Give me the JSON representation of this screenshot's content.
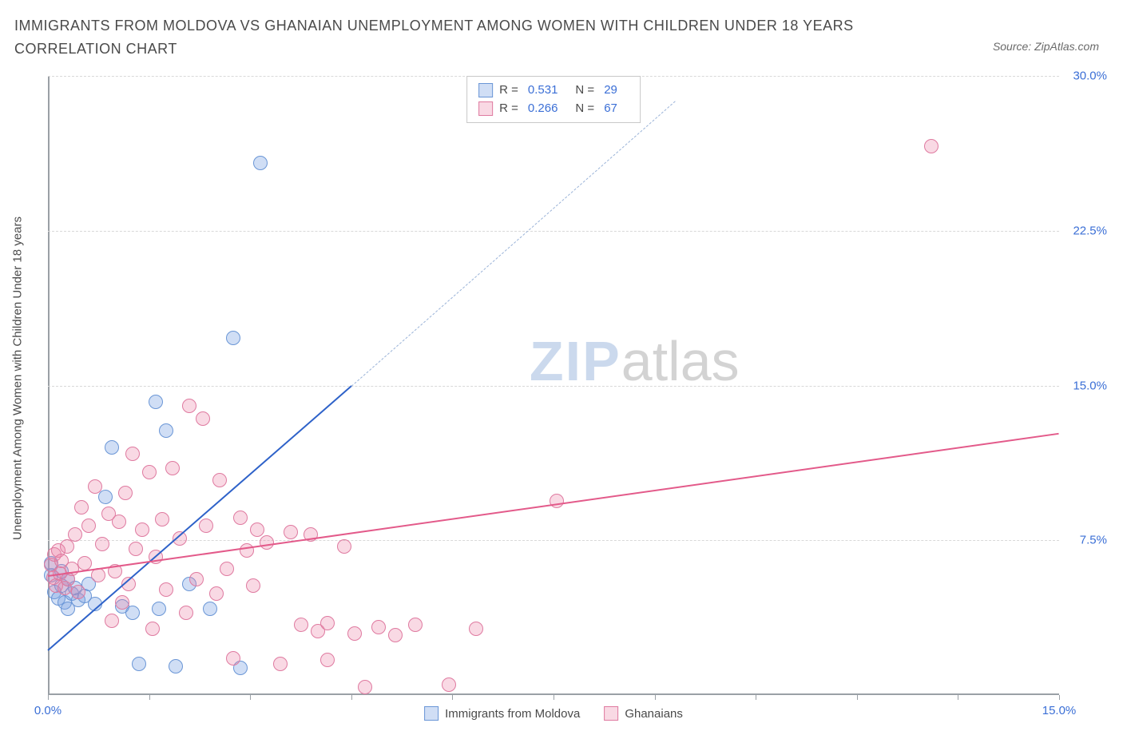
{
  "title": "IMMIGRANTS FROM MOLDOVA VS GHANAIAN UNEMPLOYMENT AMONG WOMEN WITH CHILDREN UNDER 18 YEARS CORRELATION CHART",
  "source_label": "Source: ZipAtlas.com",
  "y_axis_label": "Unemployment Among Women with Children Under 18 years",
  "watermark": {
    "part1": "ZIP",
    "part2": "atlas"
  },
  "chart": {
    "type": "scatter",
    "x_range": [
      0,
      15
    ],
    "y_range": [
      0,
      30
    ],
    "x_ticks": [
      0,
      1.5,
      3,
      4.5,
      6,
      7.5,
      9,
      10.5,
      12,
      13.5,
      15
    ],
    "x_tick_labels": {
      "0": "0.0%",
      "15": "15.0%"
    },
    "y_gridlines": [
      7.5,
      15.0,
      22.5,
      30.0
    ],
    "y_tick_labels": [
      "7.5%",
      "15.0%",
      "22.5%",
      "30.0%"
    ],
    "background_color": "#ffffff",
    "grid_color": "#d8d8d8",
    "axis_color": "#9aa0a6",
    "tick_label_color": "#3b6fd6",
    "marker_radius": 9,
    "series": [
      {
        "name": "Immigrants from Moldova",
        "fill": "rgba(120,160,225,0.35)",
        "stroke": "#6a96d6",
        "trend_color": "#2e62c9",
        "trend_dash_color": "#9ab3d8",
        "R": "0.531",
        "N": "29",
        "trend": {
          "x1": 0,
          "y1": 2.2,
          "x2": 4.5,
          "y2": 15.0,
          "extend_to_x": 9.3,
          "extend_to_y": 28.8
        },
        "points": [
          [
            0.05,
            5.8
          ],
          [
            0.05,
            6.4
          ],
          [
            0.1,
            5.0
          ],
          [
            0.15,
            4.7
          ],
          [
            0.2,
            6.0
          ],
          [
            0.2,
            5.3
          ],
          [
            0.25,
            4.5
          ],
          [
            0.3,
            4.2
          ],
          [
            0.3,
            5.6
          ],
          [
            0.35,
            4.9
          ],
          [
            0.4,
            5.2
          ],
          [
            0.45,
            4.6
          ],
          [
            0.55,
            4.8
          ],
          [
            0.6,
            5.4
          ],
          [
            0.7,
            4.4
          ],
          [
            0.85,
            9.6
          ],
          [
            0.95,
            12.0
          ],
          [
            1.1,
            4.3
          ],
          [
            1.25,
            4.0
          ],
          [
            1.35,
            1.5
          ],
          [
            1.6,
            14.2
          ],
          [
            1.65,
            4.2
          ],
          [
            1.75,
            12.8
          ],
          [
            1.9,
            1.4
          ],
          [
            2.1,
            5.4
          ],
          [
            2.4,
            4.2
          ],
          [
            2.75,
            17.3
          ],
          [
            2.85,
            1.3
          ],
          [
            3.15,
            25.8
          ]
        ]
      },
      {
        "name": "Ghanaians",
        "fill": "rgba(235,130,165,0.30)",
        "stroke": "#df7aa0",
        "trend_color": "#e35a8a",
        "R": "0.266",
        "N": "67",
        "trend": {
          "x1": 0,
          "y1": 5.8,
          "x2": 15,
          "y2": 12.7
        },
        "points": [
          [
            0.05,
            6.3
          ],
          [
            0.08,
            5.7
          ],
          [
            0.1,
            6.8
          ],
          [
            0.12,
            5.3
          ],
          [
            0.15,
            7.0
          ],
          [
            0.18,
            5.9
          ],
          [
            0.2,
            6.5
          ],
          [
            0.25,
            5.2
          ],
          [
            0.28,
            7.2
          ],
          [
            0.3,
            5.6
          ],
          [
            0.35,
            6.1
          ],
          [
            0.4,
            7.8
          ],
          [
            0.45,
            5.0
          ],
          [
            0.5,
            9.1
          ],
          [
            0.55,
            6.4
          ],
          [
            0.6,
            8.2
          ],
          [
            0.7,
            10.1
          ],
          [
            0.75,
            5.8
          ],
          [
            0.8,
            7.3
          ],
          [
            0.9,
            8.8
          ],
          [
            0.95,
            3.6
          ],
          [
            1.0,
            6.0
          ],
          [
            1.05,
            8.4
          ],
          [
            1.1,
            4.5
          ],
          [
            1.15,
            9.8
          ],
          [
            1.2,
            5.4
          ],
          [
            1.25,
            11.7
          ],
          [
            1.3,
            7.1
          ],
          [
            1.4,
            8.0
          ],
          [
            1.5,
            10.8
          ],
          [
            1.55,
            3.2
          ],
          [
            1.6,
            6.7
          ],
          [
            1.7,
            8.5
          ],
          [
            1.75,
            5.1
          ],
          [
            1.85,
            11.0
          ],
          [
            1.95,
            7.6
          ],
          [
            2.05,
            4.0
          ],
          [
            2.1,
            14.0
          ],
          [
            2.2,
            5.6
          ],
          [
            2.3,
            13.4
          ],
          [
            2.35,
            8.2
          ],
          [
            2.5,
            4.9
          ],
          [
            2.55,
            10.4
          ],
          [
            2.65,
            6.1
          ],
          [
            2.75,
            1.8
          ],
          [
            2.85,
            8.6
          ],
          [
            2.95,
            7.0
          ],
          [
            3.05,
            5.3
          ],
          [
            3.1,
            8.0
          ],
          [
            3.25,
            7.4
          ],
          [
            3.45,
            1.5
          ],
          [
            3.6,
            7.9
          ],
          [
            3.75,
            3.4
          ],
          [
            3.9,
            7.8
          ],
          [
            4.0,
            3.1
          ],
          [
            4.15,
            1.7
          ],
          [
            4.15,
            3.5
          ],
          [
            4.4,
            7.2
          ],
          [
            4.55,
            3.0
          ],
          [
            4.7,
            0.4
          ],
          [
            4.9,
            3.3
          ],
          [
            5.15,
            2.9
          ],
          [
            5.45,
            3.4
          ],
          [
            5.95,
            0.5
          ],
          [
            6.35,
            3.2
          ],
          [
            7.55,
            9.4
          ],
          [
            13.1,
            26.6
          ]
        ]
      }
    ],
    "legend_bottom": [
      {
        "label": "Immigrants from Moldova",
        "swatch_fill": "rgba(120,160,225,0.35)",
        "swatch_stroke": "#6a96d6"
      },
      {
        "label": "Ghanaians",
        "swatch_fill": "rgba(235,130,165,0.30)",
        "swatch_stroke": "#df7aa0"
      }
    ],
    "legend_top": {
      "R_label": "R =",
      "N_label": "N ="
    }
  }
}
